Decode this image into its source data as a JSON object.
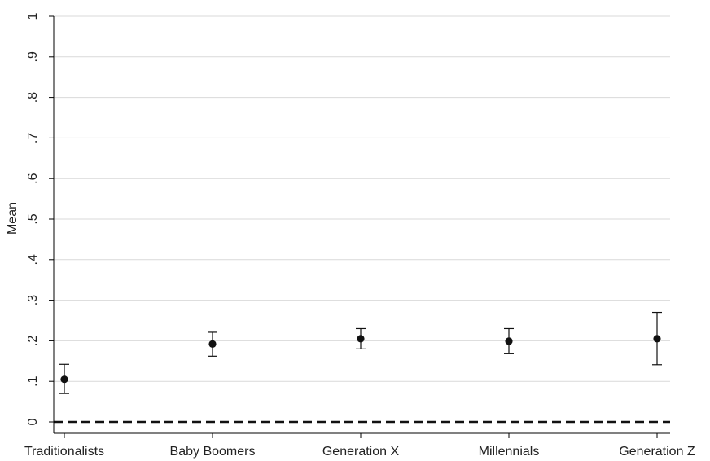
{
  "chart_data": {
    "type": "scatter",
    "title": "",
    "xlabel": "",
    "ylabel": "Mean",
    "categories": [
      "Traditionalists",
      "Baby Boomers",
      "Generation X",
      "Millennials",
      "Generation Z"
    ],
    "values": [
      0.105,
      0.192,
      0.205,
      0.199,
      0.205
    ],
    "error_low": [
      0.07,
      0.162,
      0.18,
      0.168,
      0.141
    ],
    "error_high": [
      0.142,
      0.221,
      0.23,
      0.23,
      0.27
    ],
    "ylim": [
      0,
      1
    ],
    "yticks": [
      0,
      0.1,
      0.2,
      0.3,
      0.4,
      0.5,
      0.6,
      0.7,
      0.8,
      0.9,
      1
    ],
    "ytick_labels": [
      "0",
      ".1",
      ".2",
      ".3",
      ".4",
      ".5",
      ".6",
      ".7",
      ".8",
      ".9",
      "1"
    ],
    "reference_line": {
      "y": 0,
      "style": "dashed"
    },
    "grid": true,
    "colors": {
      "marker": "#111111",
      "grid": "#d9d9d9",
      "axis": "#000000",
      "reference": "#111111"
    }
  }
}
